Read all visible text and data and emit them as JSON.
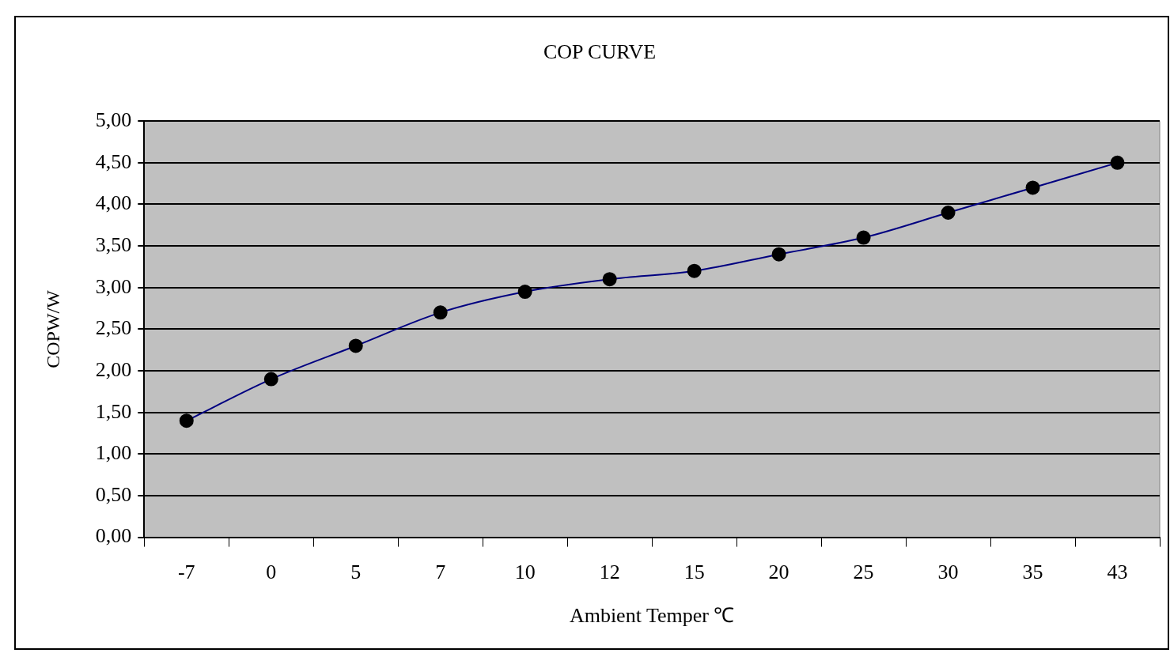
{
  "chart_data": {
    "type": "line",
    "title": "COP CURVE",
    "xlabel": "Ambient Temper ℃",
    "ylabel": "COPW/W",
    "categories": [
      "-7",
      "0",
      "5",
      "7",
      "10",
      "12",
      "15",
      "20",
      "25",
      "30",
      "35",
      "43"
    ],
    "series": [
      {
        "color": "#000080",
        "values": [
          1.4,
          1.9,
          2.3,
          2.7,
          2.95,
          3.1,
          3.2,
          3.4,
          3.6,
          3.9,
          4.2,
          4.5
        ]
      }
    ],
    "ylim": [
      0,
      5
    ],
    "yticks": [
      {
        "value": 0,
        "label": "0,00"
      },
      {
        "value": 0.5,
        "label": "0,50"
      },
      {
        "value": 1,
        "label": "1,00"
      },
      {
        "value": 1.5,
        "label": "1,50"
      },
      {
        "value": 2,
        "label": "2,00"
      },
      {
        "value": 2.5,
        "label": "2,50"
      },
      {
        "value": 3,
        "label": "3,00"
      },
      {
        "value": 3.5,
        "label": "3,50"
      },
      {
        "value": 4,
        "label": "4,00"
      },
      {
        "value": 4.5,
        "label": "4,50"
      },
      {
        "value": 5,
        "label": "5,00"
      }
    ],
    "grid": "y",
    "legend": false,
    "marker": "circle",
    "line_style": "solid"
  }
}
